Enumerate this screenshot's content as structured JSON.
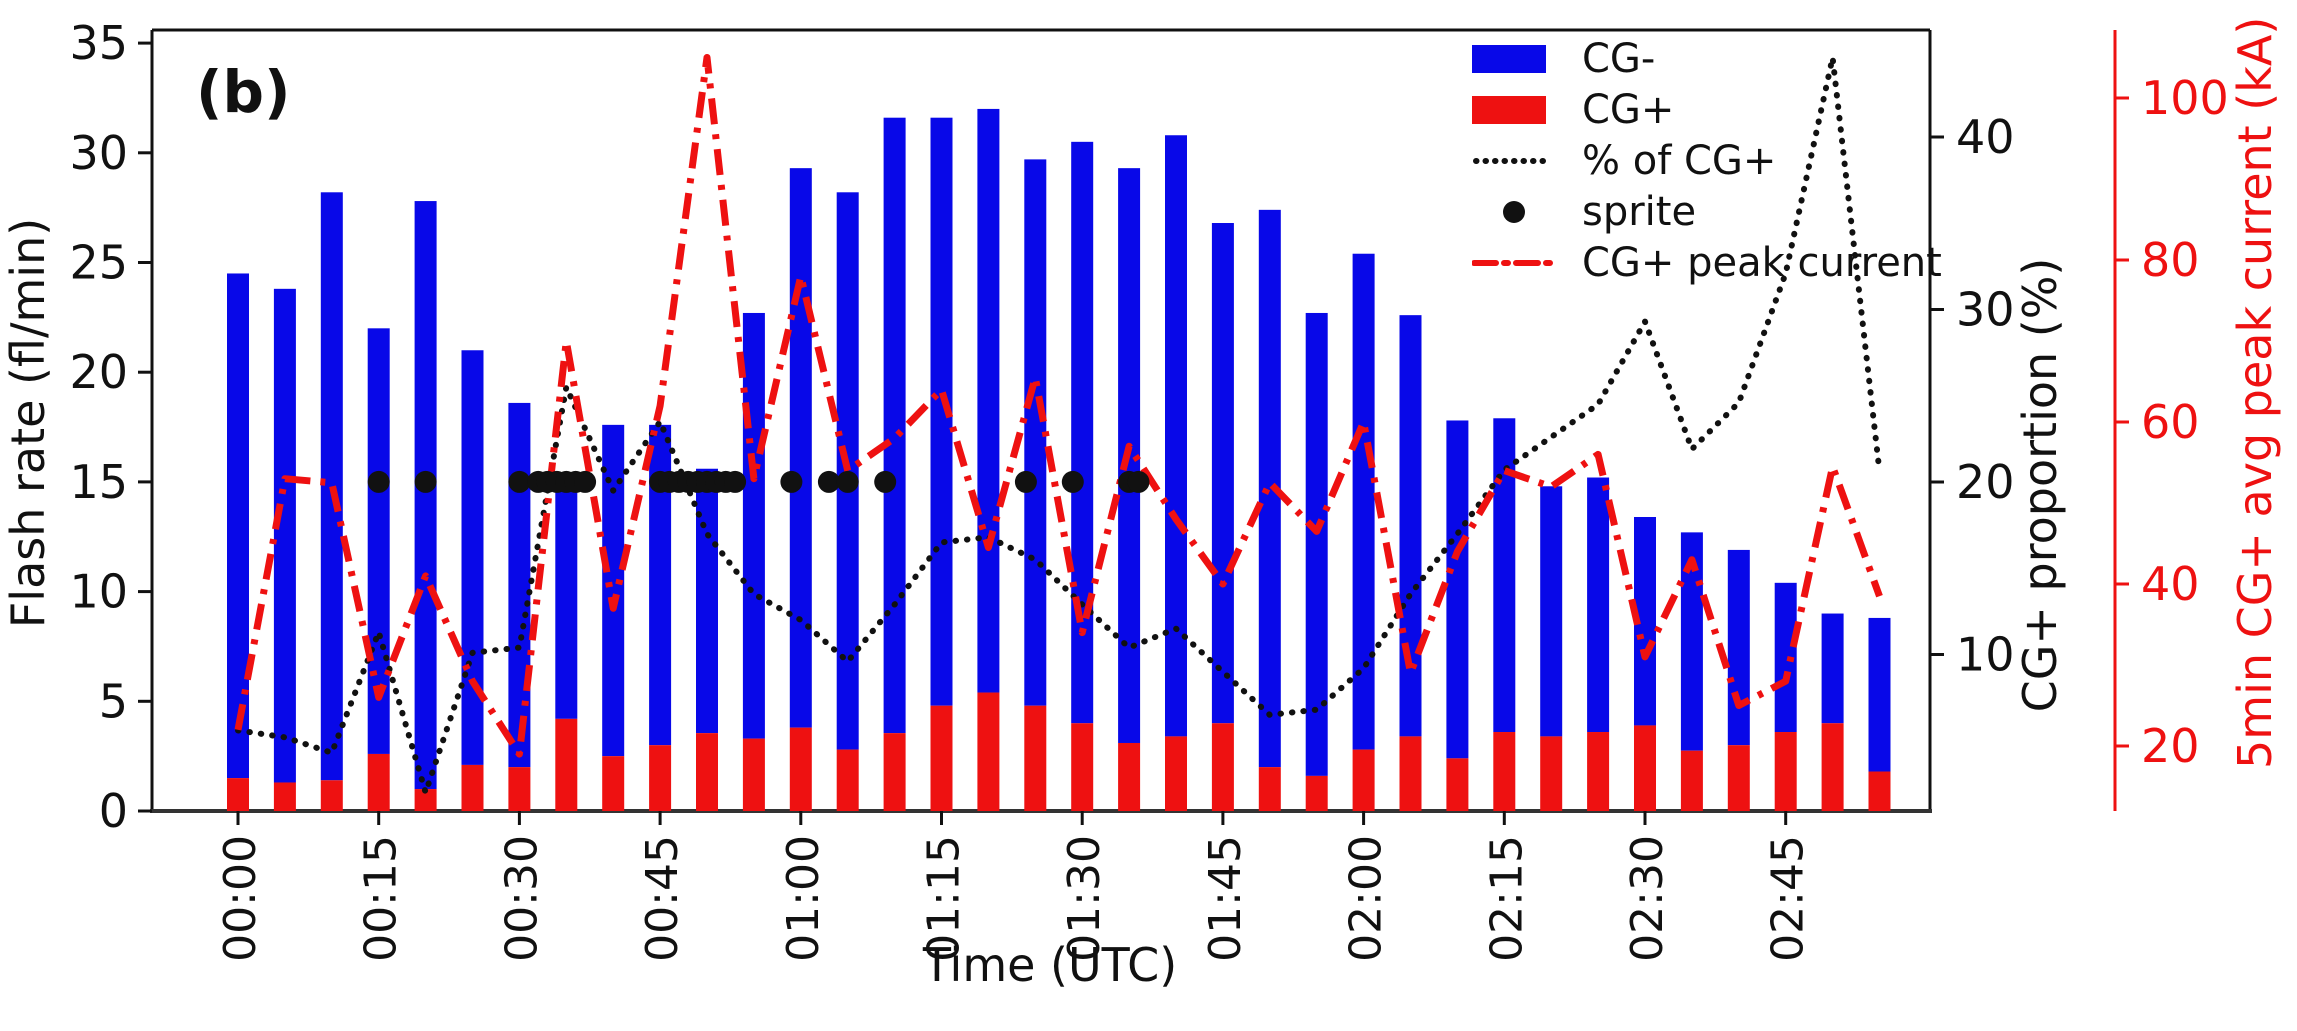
{
  "figure": {
    "panel_label": "(b)"
  },
  "legend": {
    "items": [
      {
        "label": "CG-",
        "marker": "blue-bar-swatch"
      },
      {
        "label": "CG+",
        "marker": "red-bar-swatch"
      },
      {
        "label": "% of CG+",
        "marker": "black-dotted-line"
      },
      {
        "label": "sprite",
        "marker": "black-dot"
      },
      {
        "label": "CG+ peak current",
        "marker": "red-dashdot-line"
      }
    ]
  },
  "chart_data": {
    "type": "bar",
    "subtype": "stacked bars with two overlay lines and event dots",
    "xlabel": "Time (UTC)",
    "ylabel_left": "Flash rate (fl/min)",
    "ylabel_right_black": "CG+ proportion (%)",
    "ylabel_right_red": "5min CG+ avg peak current (kA)",
    "x_tick_labels": [
      "00:00",
      "00:15",
      "00:30",
      "00:45",
      "01:00",
      "01:15",
      "01:30",
      "01:45",
      "02:00",
      "02:15",
      "02:30",
      "02:45"
    ],
    "y_left_ticks": [
      0,
      5,
      10,
      15,
      20,
      25,
      30,
      35
    ],
    "y_right_black_ticks": [
      10,
      20,
      30,
      40
    ],
    "y_right_red_ticks": [
      20,
      40,
      60,
      80,
      100
    ],
    "ylim_left": [
      0,
      35.6
    ],
    "ylim_right_black": [
      -0.9,
      45.3
    ],
    "ylim_right_red": [
      12,
      108.5
    ],
    "grid": false,
    "legend_position": "upper right inside plot",
    "categories": [
      "00:00",
      "00:05",
      "00:10",
      "00:15",
      "00:20",
      "00:25",
      "00:30",
      "00:35",
      "00:40",
      "00:45",
      "00:50",
      "00:55",
      "01:00",
      "01:05",
      "01:10",
      "01:15",
      "01:20",
      "01:25",
      "01:30",
      "01:35",
      "01:40",
      "01:45",
      "01:50",
      "01:55",
      "02:00",
      "02:05",
      "02:10",
      "02:15",
      "02:20",
      "02:25",
      "02:30",
      "02:35",
      "02:40",
      "02:45",
      "02:50",
      "02:55"
    ],
    "series": [
      {
        "name": "CG+",
        "type": "bar",
        "stack_order": 1,
        "color": "#ee1111",
        "units": "fl/min",
        "values": [
          1.5,
          1.3,
          1.4,
          2.6,
          1.0,
          2.1,
          2.0,
          4.2,
          2.5,
          3.0,
          3.55,
          3.3,
          3.8,
          2.8,
          3.55,
          4.8,
          5.4,
          4.8,
          4.0,
          3.1,
          3.4,
          4.0,
          2.0,
          1.6,
          2.8,
          3.4,
          2.4,
          3.6,
          3.4,
          3.6,
          3.9,
          2.75,
          3.0,
          3.6,
          4.0,
          1.8
        ]
      },
      {
        "name": "CG-",
        "type": "bar",
        "stack_order": 2,
        "color": "#0808e8",
        "units": "fl/min",
        "values": [
          23.0,
          22.5,
          26.8,
          19.4,
          26.8,
          18.9,
          16.6,
          10.5,
          15.1,
          14.6,
          12.05,
          19.4,
          25.5,
          25.4,
          28.05,
          26.8,
          26.6,
          24.9,
          26.5,
          26.2,
          27.4,
          22.8,
          25.4,
          21.1,
          22.6,
          19.2,
          15.4,
          14.3,
          11.4,
          11.6,
          9.5,
          9.95,
          8.9,
          6.8,
          5.0,
          7.0
        ]
      },
      {
        "name": "% of CG+",
        "type": "line",
        "style": "dotted",
        "color": "#111111",
        "units": "%",
        "axis": "right-black",
        "values": [
          5.6,
          5.2,
          4.3,
          11.3,
          2.0,
          10.1,
          10.4,
          25.5,
          19.5,
          23.5,
          17.0,
          13.5,
          12.0,
          9.6,
          12.9,
          16.5,
          16.8,
          15.5,
          12.9,
          10.4,
          11.5,
          9.0,
          6.5,
          6.8,
          9.2,
          13.5,
          17.0,
          20.7,
          22.6,
          24.5,
          29.3,
          21.9,
          24.6,
          32.1,
          44.6,
          20.6
        ]
      },
      {
        "name": "CG+ peak current",
        "type": "line",
        "style": "dash-dot",
        "color": "#ee1111",
        "units": "kA",
        "axis": "right-red",
        "values": [
          22,
          53,
          52.5,
          26,
          41,
          28,
          19,
          70,
          37,
          62,
          105,
          53,
          78,
          54,
          58,
          64,
          44.5,
          65.5,
          34,
          57,
          48,
          40,
          52.5,
          46.5,
          60,
          29,
          44,
          54,
          52,
          56,
          31,
          43,
          25,
          28,
          54.5,
          38.5
        ]
      }
    ],
    "sprite_events": {
      "marker": "black filled circle",
      "plotted_at_left_axis_value": 15,
      "minutes_after_0000": [
        15,
        20,
        30,
        32,
        33,
        34,
        35,
        36,
        37,
        45,
        46,
        47,
        48,
        49,
        50,
        51,
        52,
        53,
        59,
        63,
        65,
        69,
        84,
        89,
        95,
        96
      ]
    }
  }
}
